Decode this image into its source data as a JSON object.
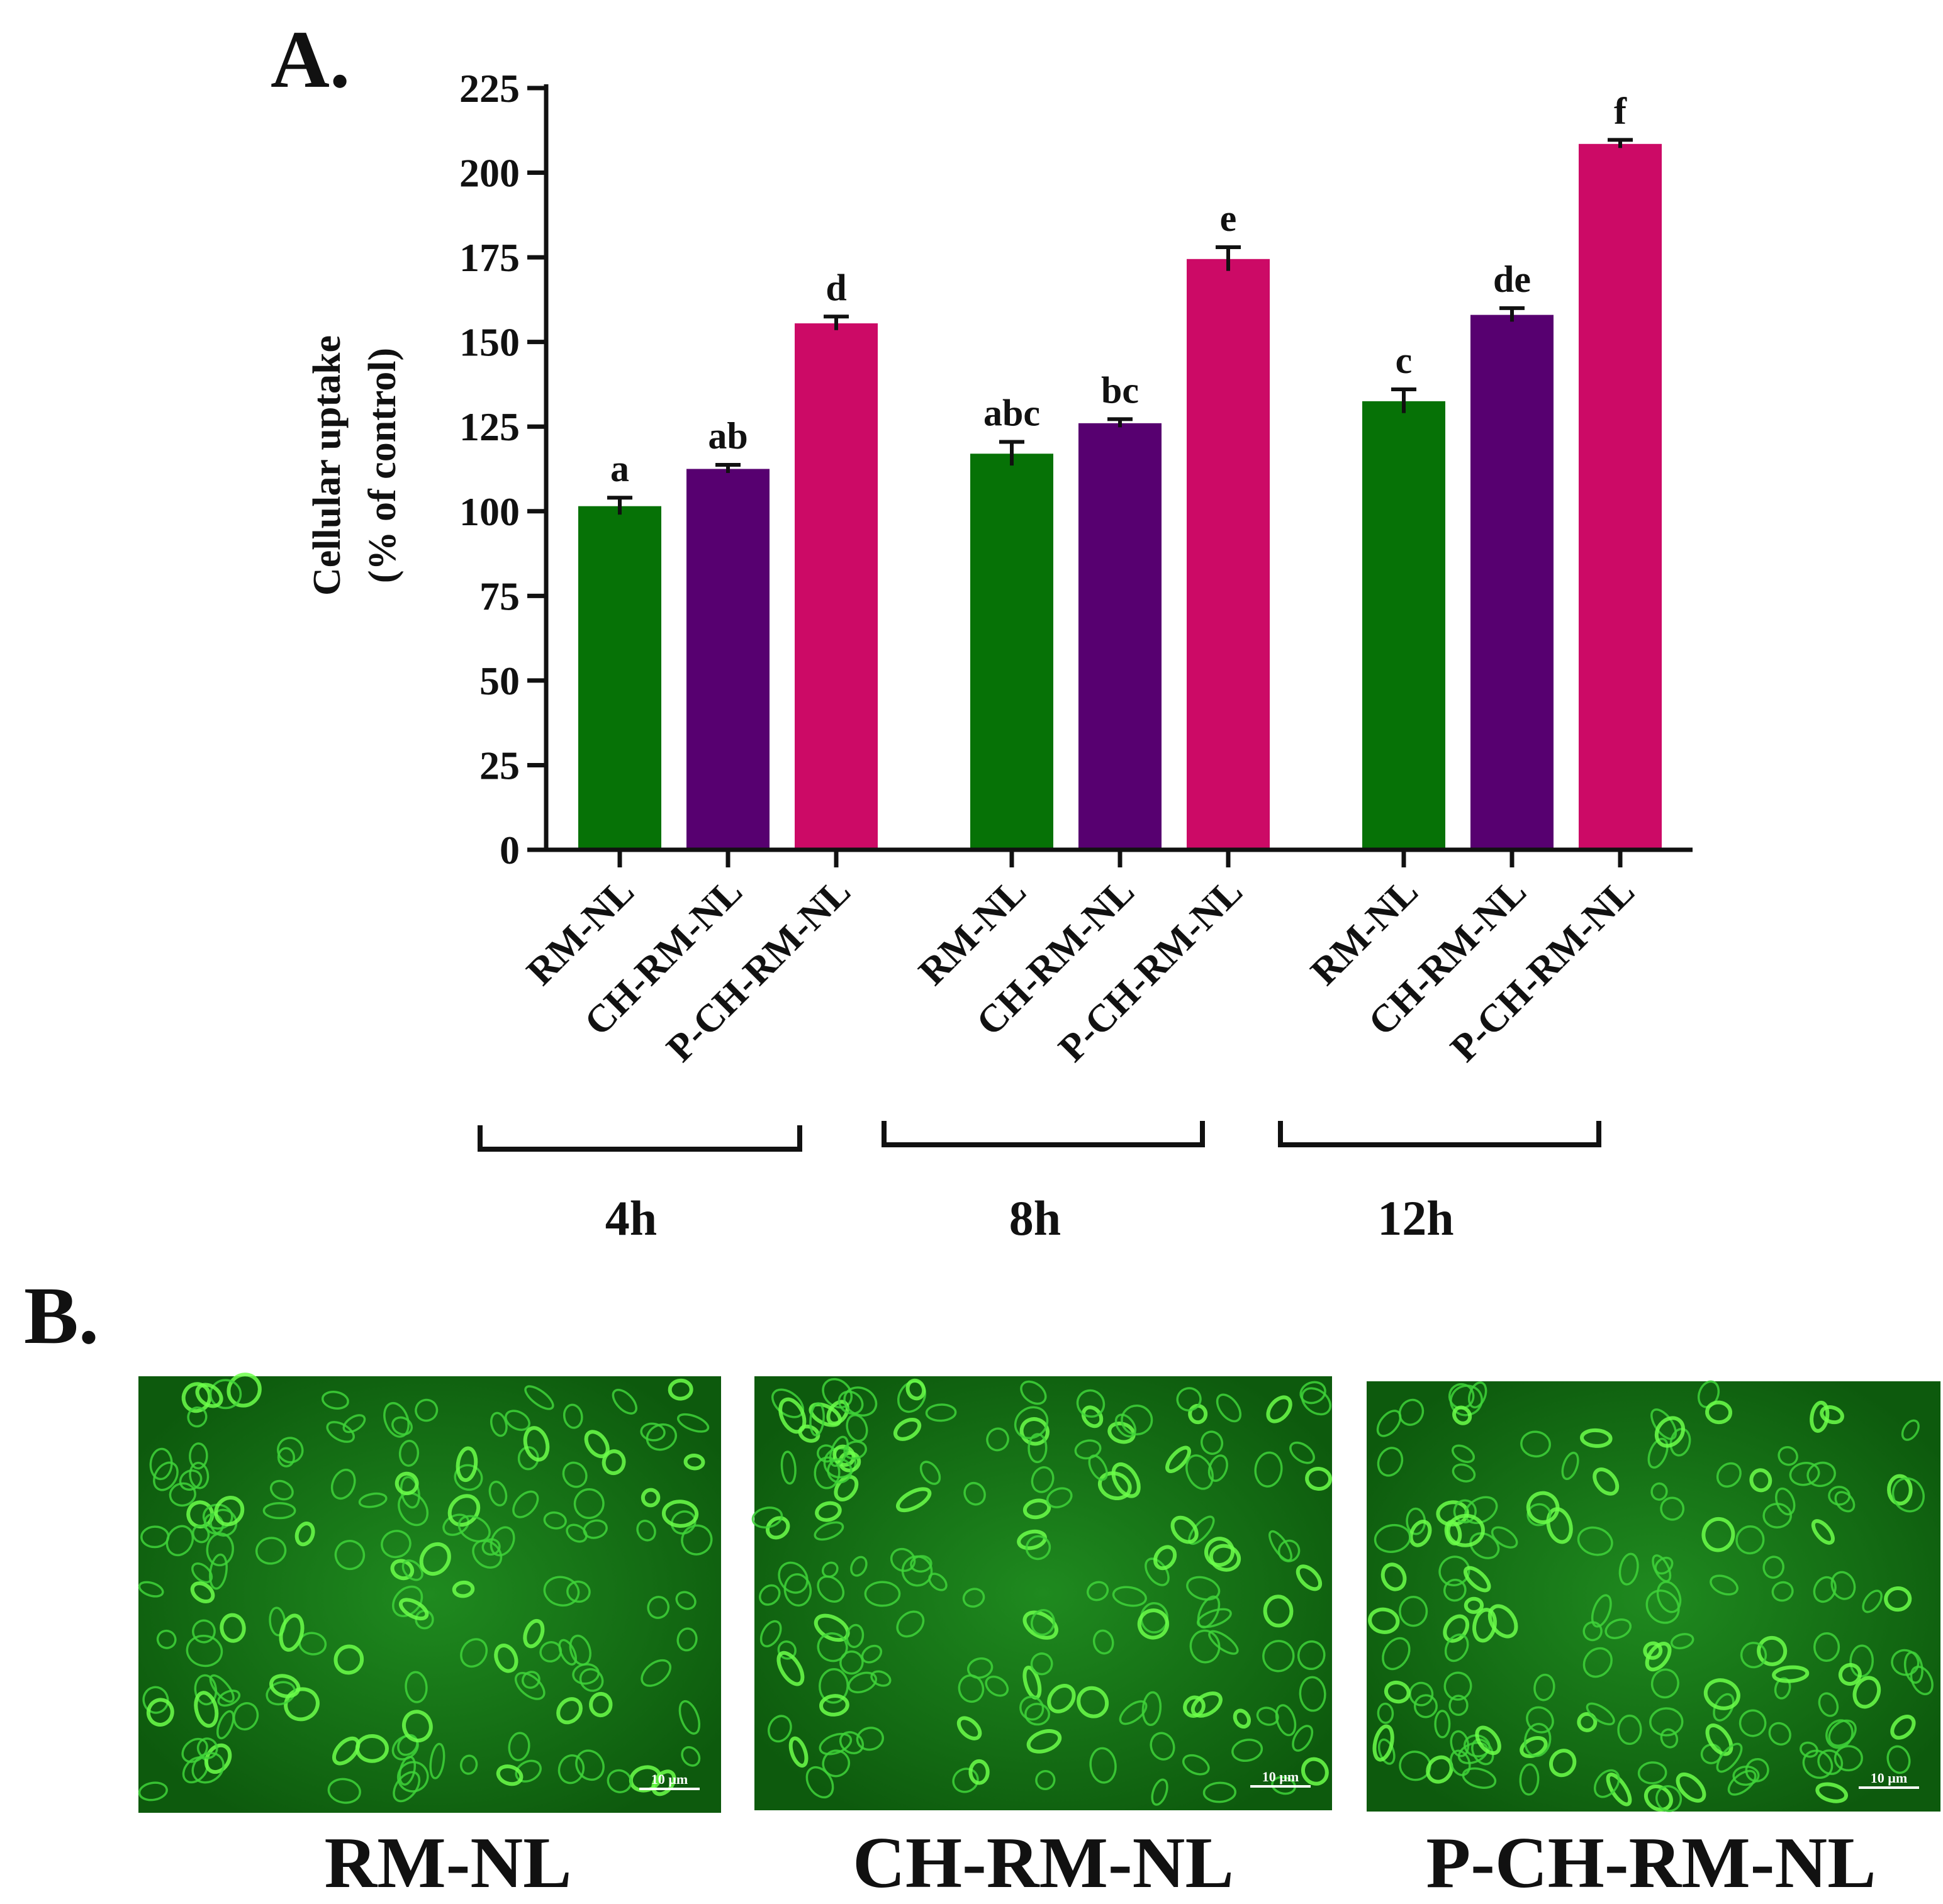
{
  "panel_a": {
    "letter": "A."
  },
  "panel_b": {
    "letter": "B.",
    "images": [
      {
        "caption": "RM-NL",
        "scale_bar": "10 µm"
      },
      {
        "caption": "CH-RM-NL",
        "scale_bar": "10 µm"
      },
      {
        "caption": "P-CH-RM-NL",
        "scale_bar": "10 µm"
      }
    ]
  },
  "chart_data": {
    "type": "bar",
    "title": "",
    "xlabel": "",
    "ylabel_line1": "Cellular uptake",
    "ylabel_line2": "(% of control)",
    "ylim": [
      0,
      225
    ],
    "yticks": [
      0,
      25,
      50,
      75,
      100,
      125,
      150,
      175,
      200,
      225
    ],
    "grid": false,
    "legend": "none",
    "groups": [
      {
        "label": "4h",
        "bars": [
          {
            "category": "RM-NL",
            "value": 101.5,
            "error": 2.5,
            "sig": "a",
            "color": "#067206"
          },
          {
            "category": "CH-RM-NL",
            "value": 112.5,
            "error": 1.2,
            "sig": "ab",
            "color": "#570070"
          },
          {
            "category": "P-CH-RM-NL",
            "value": 155.5,
            "error": 2,
            "sig": "d",
            "color": "#cc0a66"
          }
        ]
      },
      {
        "label": "8h",
        "bars": [
          {
            "category": "RM-NL",
            "value": 117,
            "error": 3.5,
            "sig": "abc",
            "color": "#067206"
          },
          {
            "category": "CH-RM-NL",
            "value": 126,
            "error": 1.2,
            "sig": "bc",
            "color": "#570070"
          },
          {
            "category": "P-CH-RM-NL",
            "value": 174.5,
            "error": 3.5,
            "sig": "e",
            "color": "#cc0a66"
          }
        ]
      },
      {
        "label": "12h",
        "bars": [
          {
            "category": "RM-NL",
            "value": 132.5,
            "error": 3.5,
            "sig": "c",
            "color": "#067206"
          },
          {
            "category": "CH-RM-NL",
            "value": 158,
            "error": 2,
            "sig": "de",
            "color": "#570070"
          },
          {
            "category": "P-CH-RM-NL",
            "value": 208.5,
            "error": 1.2,
            "sig": "f",
            "color": "#cc0a66"
          }
        ]
      }
    ]
  }
}
